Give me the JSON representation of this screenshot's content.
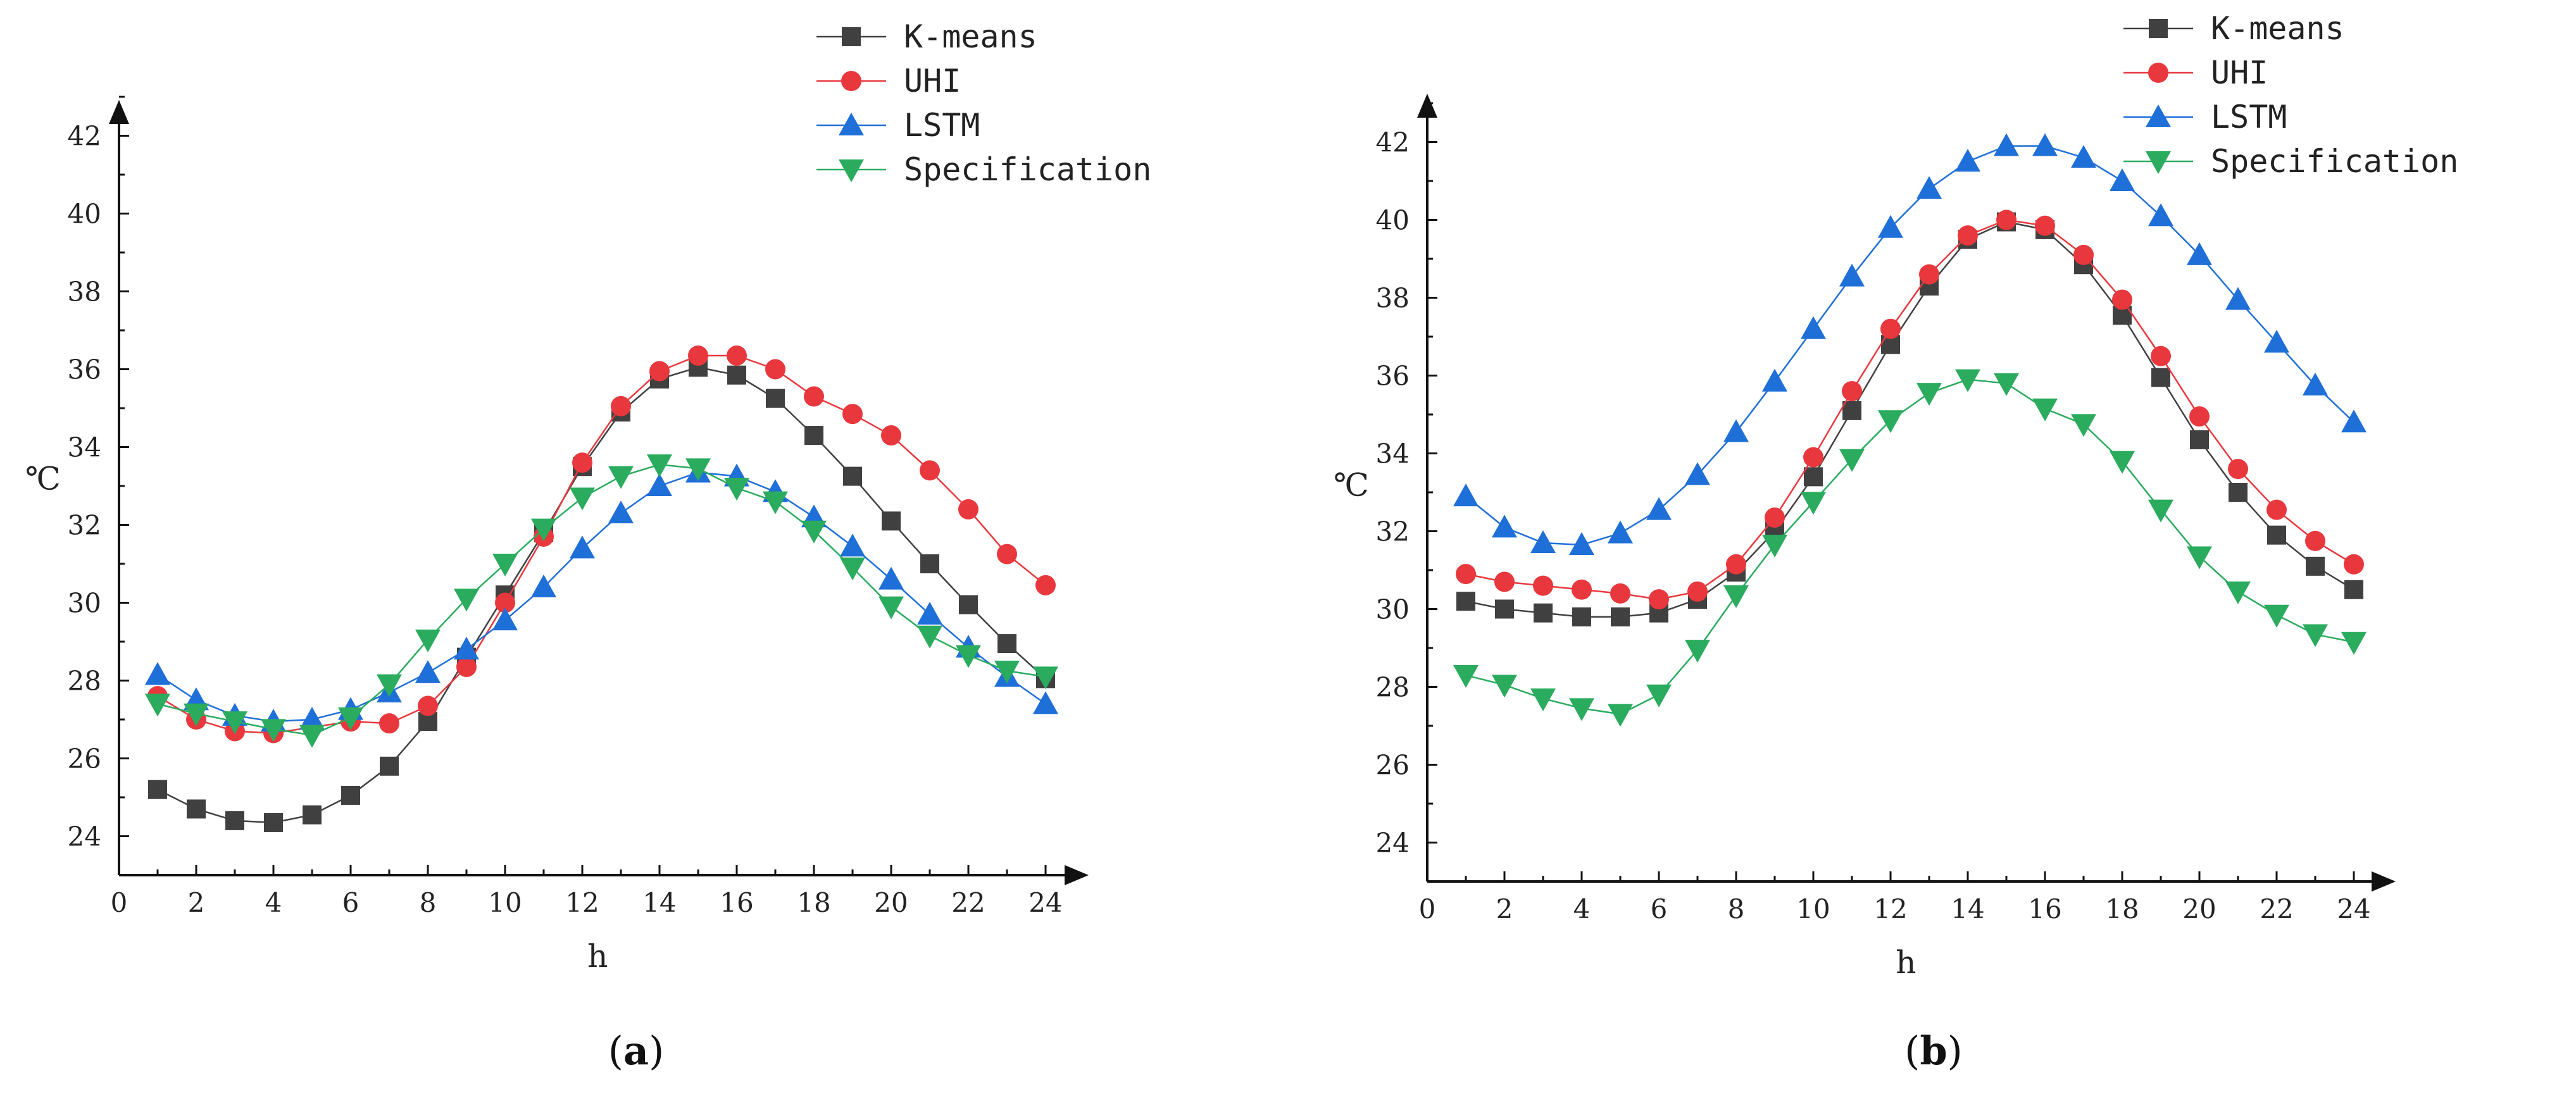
{
  "chart_data": [
    {
      "type": "line",
      "panel_label": "a",
      "xlabel": "h",
      "ylabel": "℃",
      "xlim": [
        0,
        25
      ],
      "ylim": [
        23,
        43.5
      ],
      "xticks": [
        0,
        2,
        4,
        6,
        8,
        10,
        12,
        14,
        16,
        18,
        20,
        22,
        24
      ],
      "yticks": [
        24,
        26,
        28,
        30,
        32,
        34,
        36,
        38,
        40,
        42
      ],
      "legend_position": "top-right",
      "x": [
        1,
        2,
        3,
        4,
        5,
        6,
        7,
        8,
        9,
        10,
        11,
        12,
        13,
        14,
        15,
        16,
        17,
        18,
        19,
        20,
        21,
        22,
        23,
        24
      ],
      "series": [
        {
          "name": "K-means",
          "marker": "square",
          "color": "#404040",
          "values": [
            25.2,
            24.7,
            24.4,
            24.35,
            24.55,
            25.05,
            25.8,
            26.95,
            28.6,
            30.2,
            31.8,
            33.5,
            34.9,
            35.75,
            36.05,
            35.85,
            35.25,
            34.3,
            33.25,
            32.1,
            31.0,
            29.95,
            28.95,
            28.05
          ]
        },
        {
          "name": "UHI",
          "marker": "circle",
          "color": "#e8383d",
          "values": [
            27.6,
            27.0,
            26.7,
            26.65,
            26.8,
            26.95,
            26.9,
            27.35,
            28.35,
            30.0,
            31.7,
            33.6,
            35.05,
            35.95,
            36.35,
            36.35,
            36.0,
            35.3,
            34.85,
            34.3,
            33.4,
            32.4,
            31.25,
            30.45
          ]
        },
        {
          "name": "LSTM",
          "marker": "triangle-up",
          "color": "#1f6fd8",
          "values": [
            28.15,
            27.5,
            27.1,
            26.95,
            27.0,
            27.25,
            27.7,
            28.2,
            28.8,
            29.55,
            30.4,
            31.4,
            32.3,
            33.0,
            33.35,
            33.25,
            32.85,
            32.2,
            31.45,
            30.6,
            29.7,
            28.85,
            28.1,
            27.4
          ]
        },
        {
          "name": "Specification",
          "marker": "triangle-down",
          "color": "#2aab5e",
          "values": [
            27.4,
            27.15,
            26.95,
            26.75,
            26.6,
            27.05,
            27.9,
            29.05,
            30.1,
            31.0,
            31.9,
            32.7,
            33.25,
            33.55,
            33.45,
            32.95,
            32.6,
            31.85,
            30.9,
            29.9,
            29.15,
            28.65,
            28.25,
            28.1
          ]
        }
      ]
    },
    {
      "type": "line",
      "panel_label": "b",
      "xlabel": "h",
      "ylabel": "℃",
      "xlim": [
        0,
        25
      ],
      "ylim": [
        23,
        43.5
      ],
      "xticks": [
        0,
        2,
        4,
        6,
        8,
        10,
        12,
        14,
        16,
        18,
        20,
        22,
        24
      ],
      "yticks": [
        24,
        26,
        28,
        30,
        32,
        34,
        36,
        38,
        40,
        42
      ],
      "legend_position": "top-right",
      "x": [
        1,
        2,
        3,
        4,
        5,
        6,
        7,
        8,
        9,
        10,
        11,
        12,
        13,
        14,
        15,
        16,
        17,
        18,
        19,
        20,
        21,
        22,
        23,
        24
      ],
      "series": [
        {
          "name": "K-means",
          "marker": "square",
          "color": "#404040",
          "values": [
            30.2,
            30.0,
            29.9,
            29.8,
            29.8,
            29.9,
            30.25,
            30.95,
            32.0,
            33.4,
            35.1,
            36.8,
            38.3,
            39.5,
            39.95,
            39.75,
            38.85,
            37.55,
            35.95,
            34.35,
            33.0,
            31.9,
            31.1,
            30.5
          ]
        },
        {
          "name": "UHI",
          "marker": "circle",
          "color": "#e8383d",
          "values": [
            30.9,
            30.7,
            30.6,
            30.5,
            30.4,
            30.25,
            30.45,
            31.15,
            32.35,
            33.9,
            35.6,
            37.2,
            38.6,
            39.6,
            40.0,
            39.85,
            39.1,
            37.95,
            36.5,
            34.95,
            33.6,
            32.55,
            31.75,
            31.15
          ]
        },
        {
          "name": "LSTM",
          "marker": "triangle-up",
          "color": "#1f6fd8",
          "values": [
            32.9,
            32.1,
            31.7,
            31.65,
            31.95,
            32.55,
            33.45,
            34.55,
            35.85,
            37.2,
            38.55,
            39.8,
            40.8,
            41.5,
            41.9,
            41.9,
            41.6,
            41.0,
            40.1,
            39.1,
            37.95,
            36.85,
            35.75,
            34.8
          ]
        },
        {
          "name": "Specification",
          "marker": "triangle-down",
          "color": "#2aab5e",
          "values": [
            28.3,
            28.05,
            27.7,
            27.45,
            27.3,
            27.8,
            28.95,
            30.35,
            31.65,
            32.75,
            33.85,
            34.85,
            35.55,
            35.9,
            35.8,
            35.15,
            34.75,
            33.8,
            32.55,
            31.35,
            30.45,
            29.85,
            29.35,
            29.15
          ]
        }
      ]
    }
  ]
}
